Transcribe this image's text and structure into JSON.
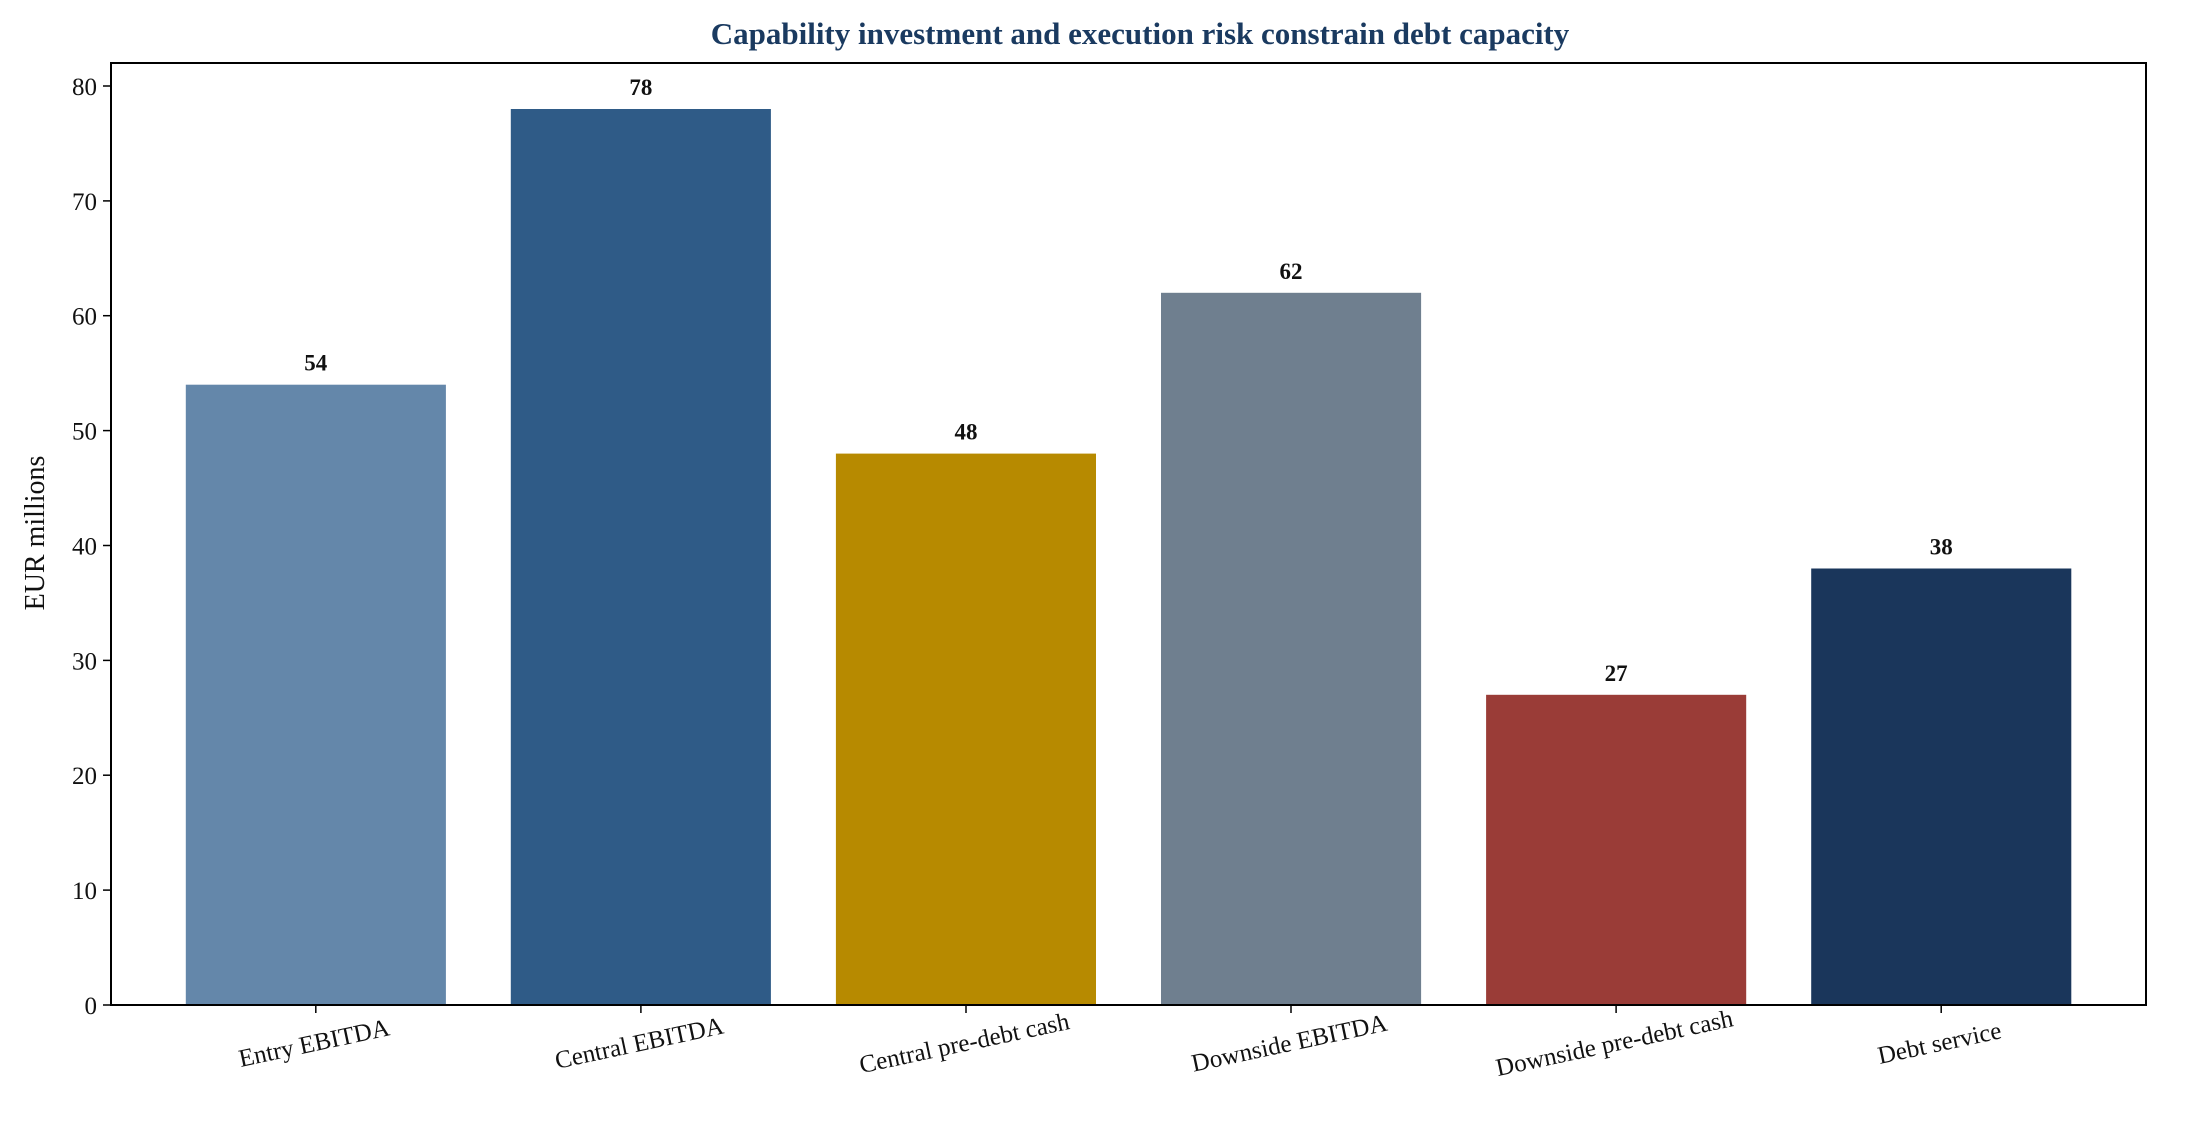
{
  "chart_data": {
    "type": "bar",
    "title": "Capability investment and execution risk constrain debt capacity",
    "xlabel": "",
    "ylabel": "EUR millions",
    "ylim": [
      0,
      82
    ],
    "yticks": [
      0,
      10,
      20,
      30,
      40,
      50,
      60,
      70,
      80
    ],
    "categories": [
      "Entry EBITDA",
      "Central EBITDA",
      "Central pre-debt cash",
      "Downside EBITDA",
      "Downside pre-debt cash",
      "Debt service"
    ],
    "values": [
      54,
      78,
      48,
      62,
      27,
      38
    ],
    "data_labels": [
      "54",
      "78",
      "48",
      "62",
      "27",
      "38"
    ],
    "colors": [
      "#6487aa",
      "#2f5b87",
      "#b78a00",
      "#6f7f8f",
      "#9a3c37",
      "#1a365b"
    ],
    "grid": false,
    "legend": "none",
    "x_tick_rotation_deg": 12
  }
}
